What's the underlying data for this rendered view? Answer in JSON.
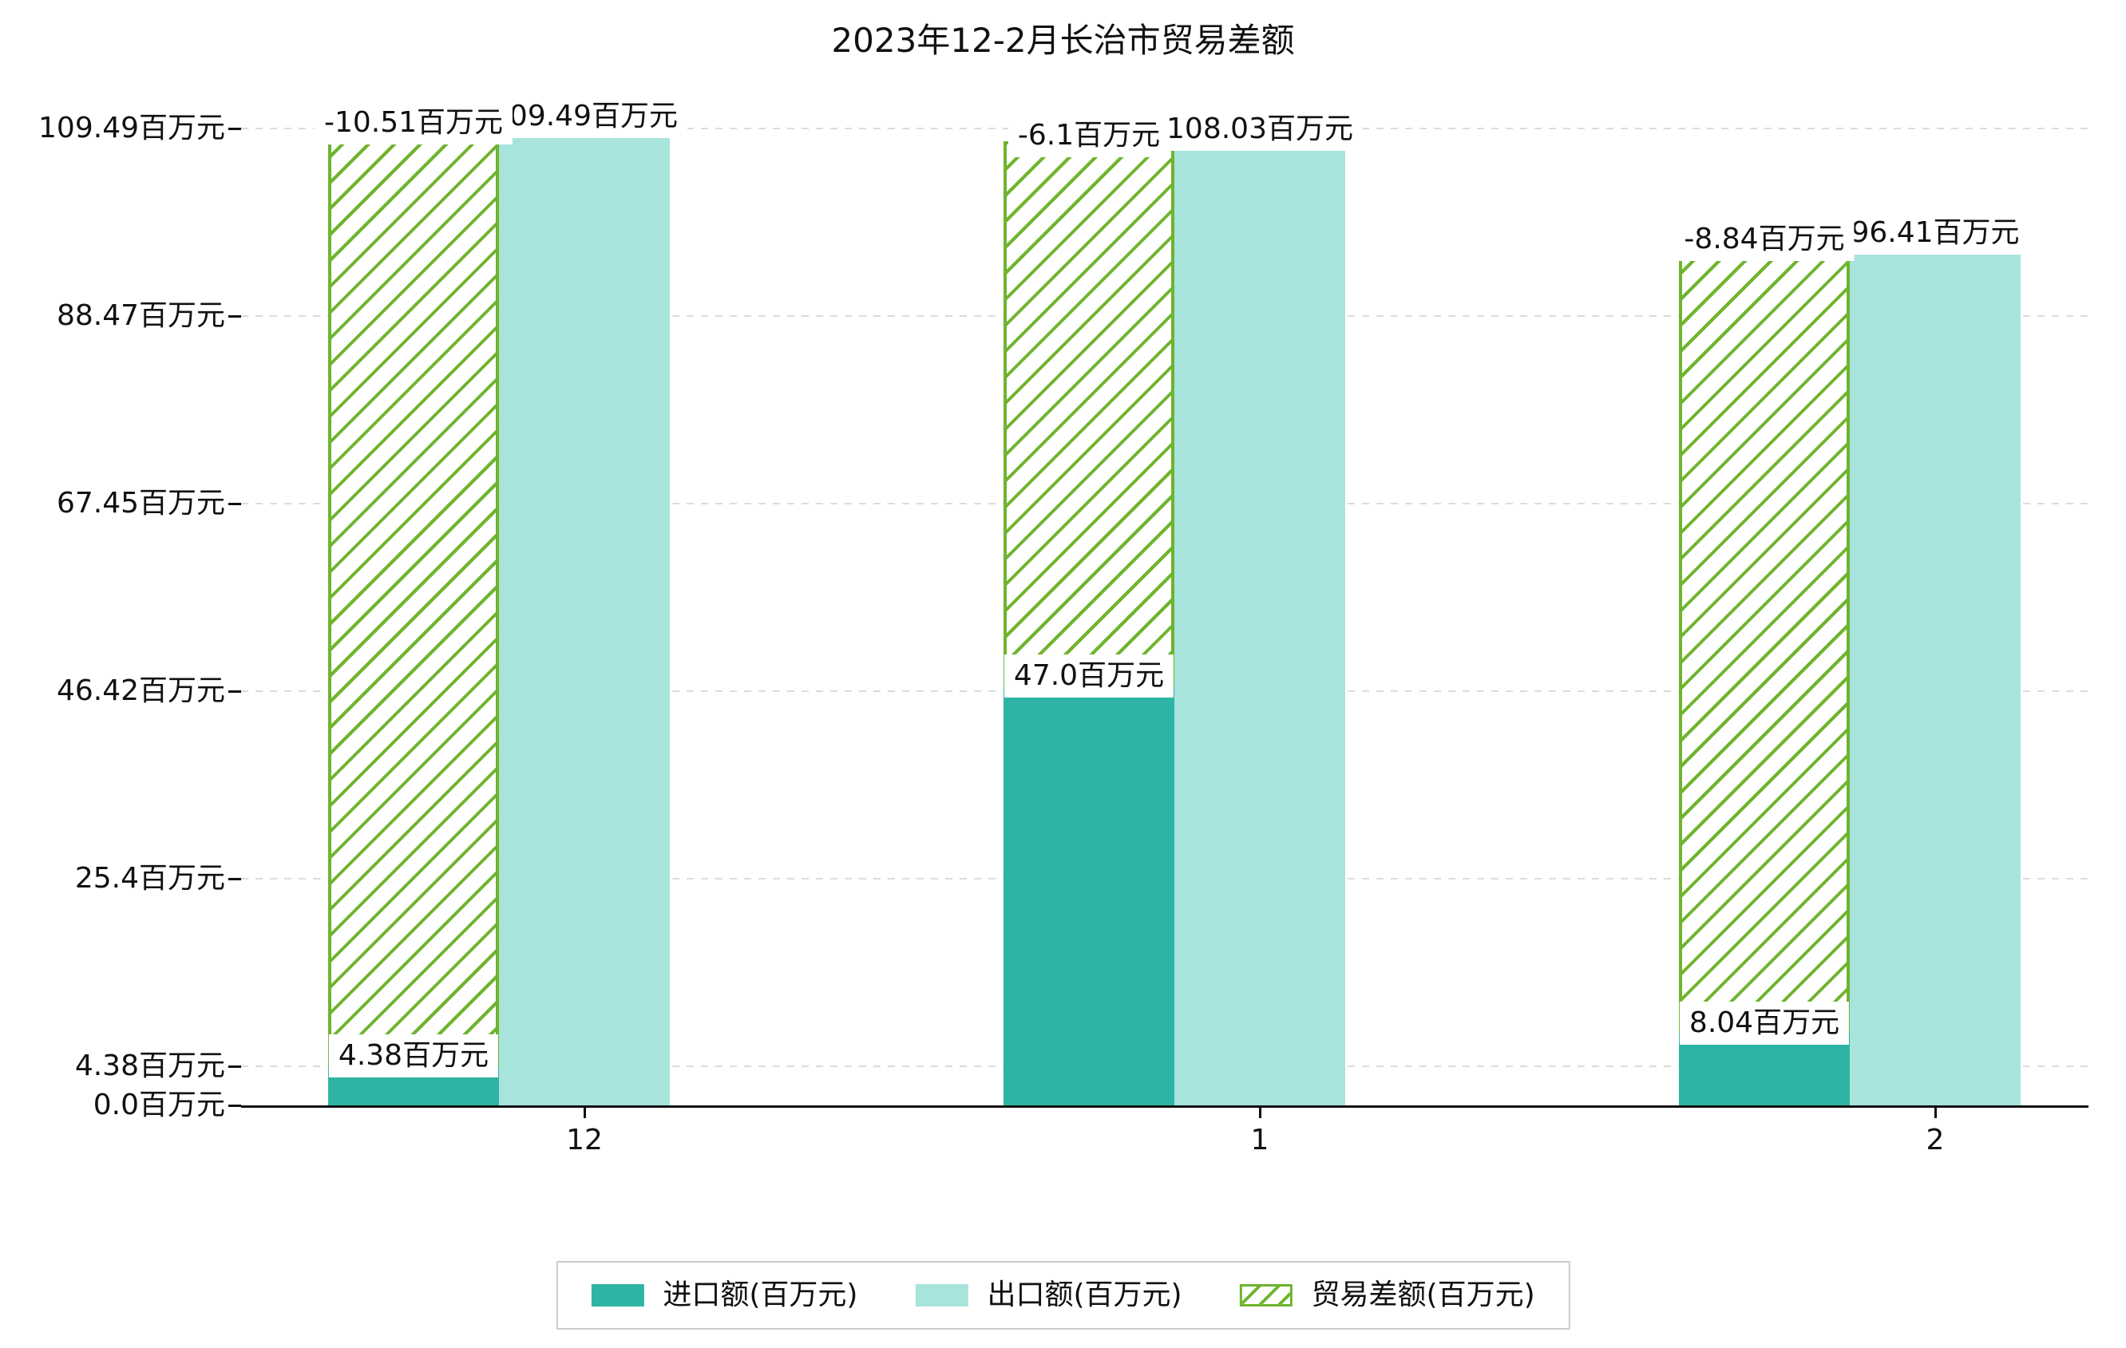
{
  "chart_data": {
    "type": "bar",
    "title": "2023年12-2月长治市贸易差额",
    "xlabel": "",
    "ylabel": "",
    "categories": [
      "12",
      "1",
      "2"
    ],
    "series": [
      {
        "name": "进口额(百万元)",
        "key": "imports",
        "style": "solid",
        "color": "#2eb4a4",
        "values": [
          4.38,
          47.0,
          8.04
        ],
        "labels": [
          "4.38百万元",
          "47.0百万元",
          "8.04百万元"
        ]
      },
      {
        "name": "出口额(百万元)",
        "key": "exports",
        "style": "solid",
        "color": "#a8e4dc",
        "values": [
          109.49,
          108.03,
          96.41
        ],
        "labels": [
          "109.49百万元",
          "108.03百万元",
          "96.41百万元"
        ]
      },
      {
        "name": "贸易差额(百万元)",
        "key": "balance",
        "style": "hatched",
        "color": "#6fb42e",
        "values": [
          -10.51,
          -6.1,
          -8.84
        ],
        "labels": [
          "-10.51百万元",
          "-6.1百万元",
          "-8.84百万元"
        ]
      }
    ],
    "y_ticks": [
      "0.0百万元",
      "4.38百万元",
      "25.4百万元",
      "46.42百万元",
      "67.45百万元",
      "88.47百万元",
      "109.49百万元"
    ],
    "y_tick_values": [
      0.0,
      4.38,
      25.4,
      46.42,
      67.45,
      88.47,
      109.49
    ],
    "ylim": [
      0.0,
      115.5
    ],
    "grid": true,
    "grid_style": "dashed",
    "legend_position": "bottom",
    "colors": {
      "imports": "#2eb4a4",
      "exports": "#a8e4dc",
      "balance": "#6fb42e",
      "text": "#111111",
      "gridline": "#dcdcdc",
      "legend_border": "#cccccc"
    }
  }
}
